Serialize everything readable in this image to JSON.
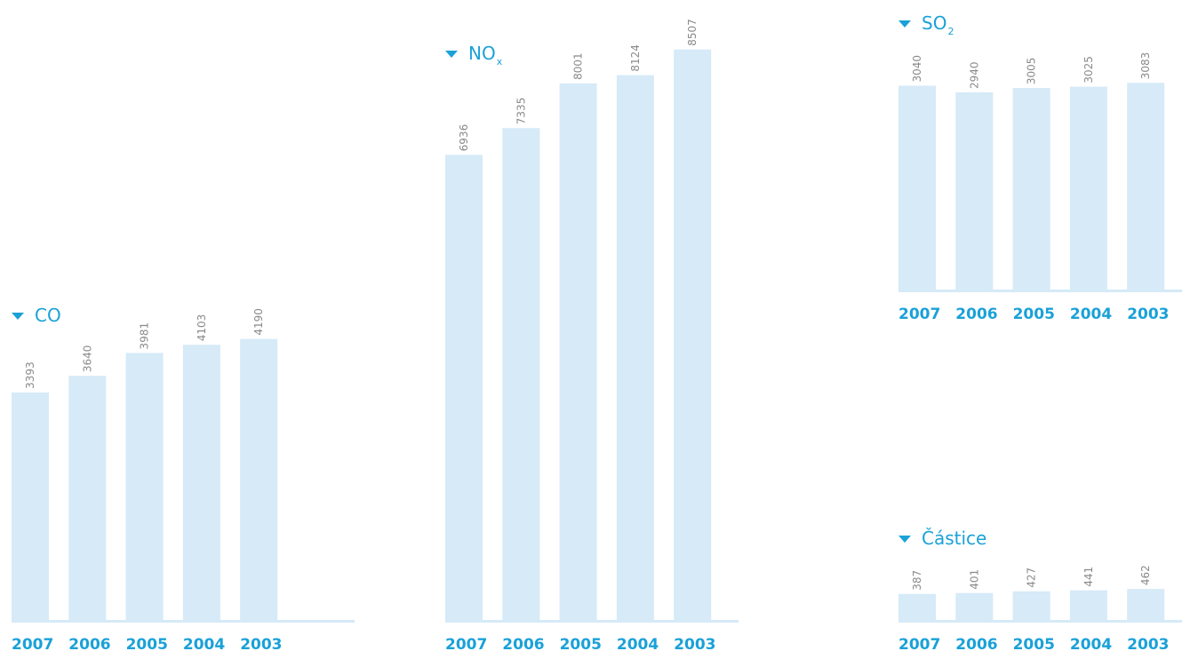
{
  "chart_data": [
    {
      "type": "bar",
      "title": "CO",
      "categories": [
        "2007",
        "2006",
        "2005",
        "2004",
        "2003"
      ],
      "values": [
        3393,
        3640,
        3981,
        4103,
        4190
      ],
      "colors": {
        "bar": "#d6eaf7",
        "accent": "#1aa1d8",
        "value": "#8a8a8a",
        "baseline": "#d6eaf7"
      }
    },
    {
      "type": "bar",
      "title": "NOx",
      "categories": [
        "2007",
        "2006",
        "2005",
        "2004",
        "2003"
      ],
      "values": [
        6936,
        7335,
        8001,
        8124,
        8507
      ],
      "colors": {
        "bar": "#d6eaf7",
        "accent": "#1aa1d8",
        "value": "#8a8a8a",
        "baseline": "#d6eaf7"
      }
    },
    {
      "type": "bar",
      "title": "SO2",
      "categories": [
        "2007",
        "2006",
        "2005",
        "2004",
        "2003"
      ],
      "values": [
        3040,
        2940,
        3005,
        3025,
        3083
      ],
      "colors": {
        "bar": "#d6eaf7",
        "accent": "#1aa1d8",
        "value": "#8a8a8a",
        "baseline": "#d6eaf7"
      }
    },
    {
      "type": "bar",
      "title": "Částice",
      "categories": [
        "2007",
        "2006",
        "2005",
        "2004",
        "2003"
      ],
      "values": [
        387,
        401,
        427,
        441,
        462
      ],
      "colors": {
        "bar": "#d6eaf7",
        "accent": "#1aa1d8",
        "value": "#8a8a8a",
        "baseline": "#d6eaf7"
      }
    }
  ]
}
